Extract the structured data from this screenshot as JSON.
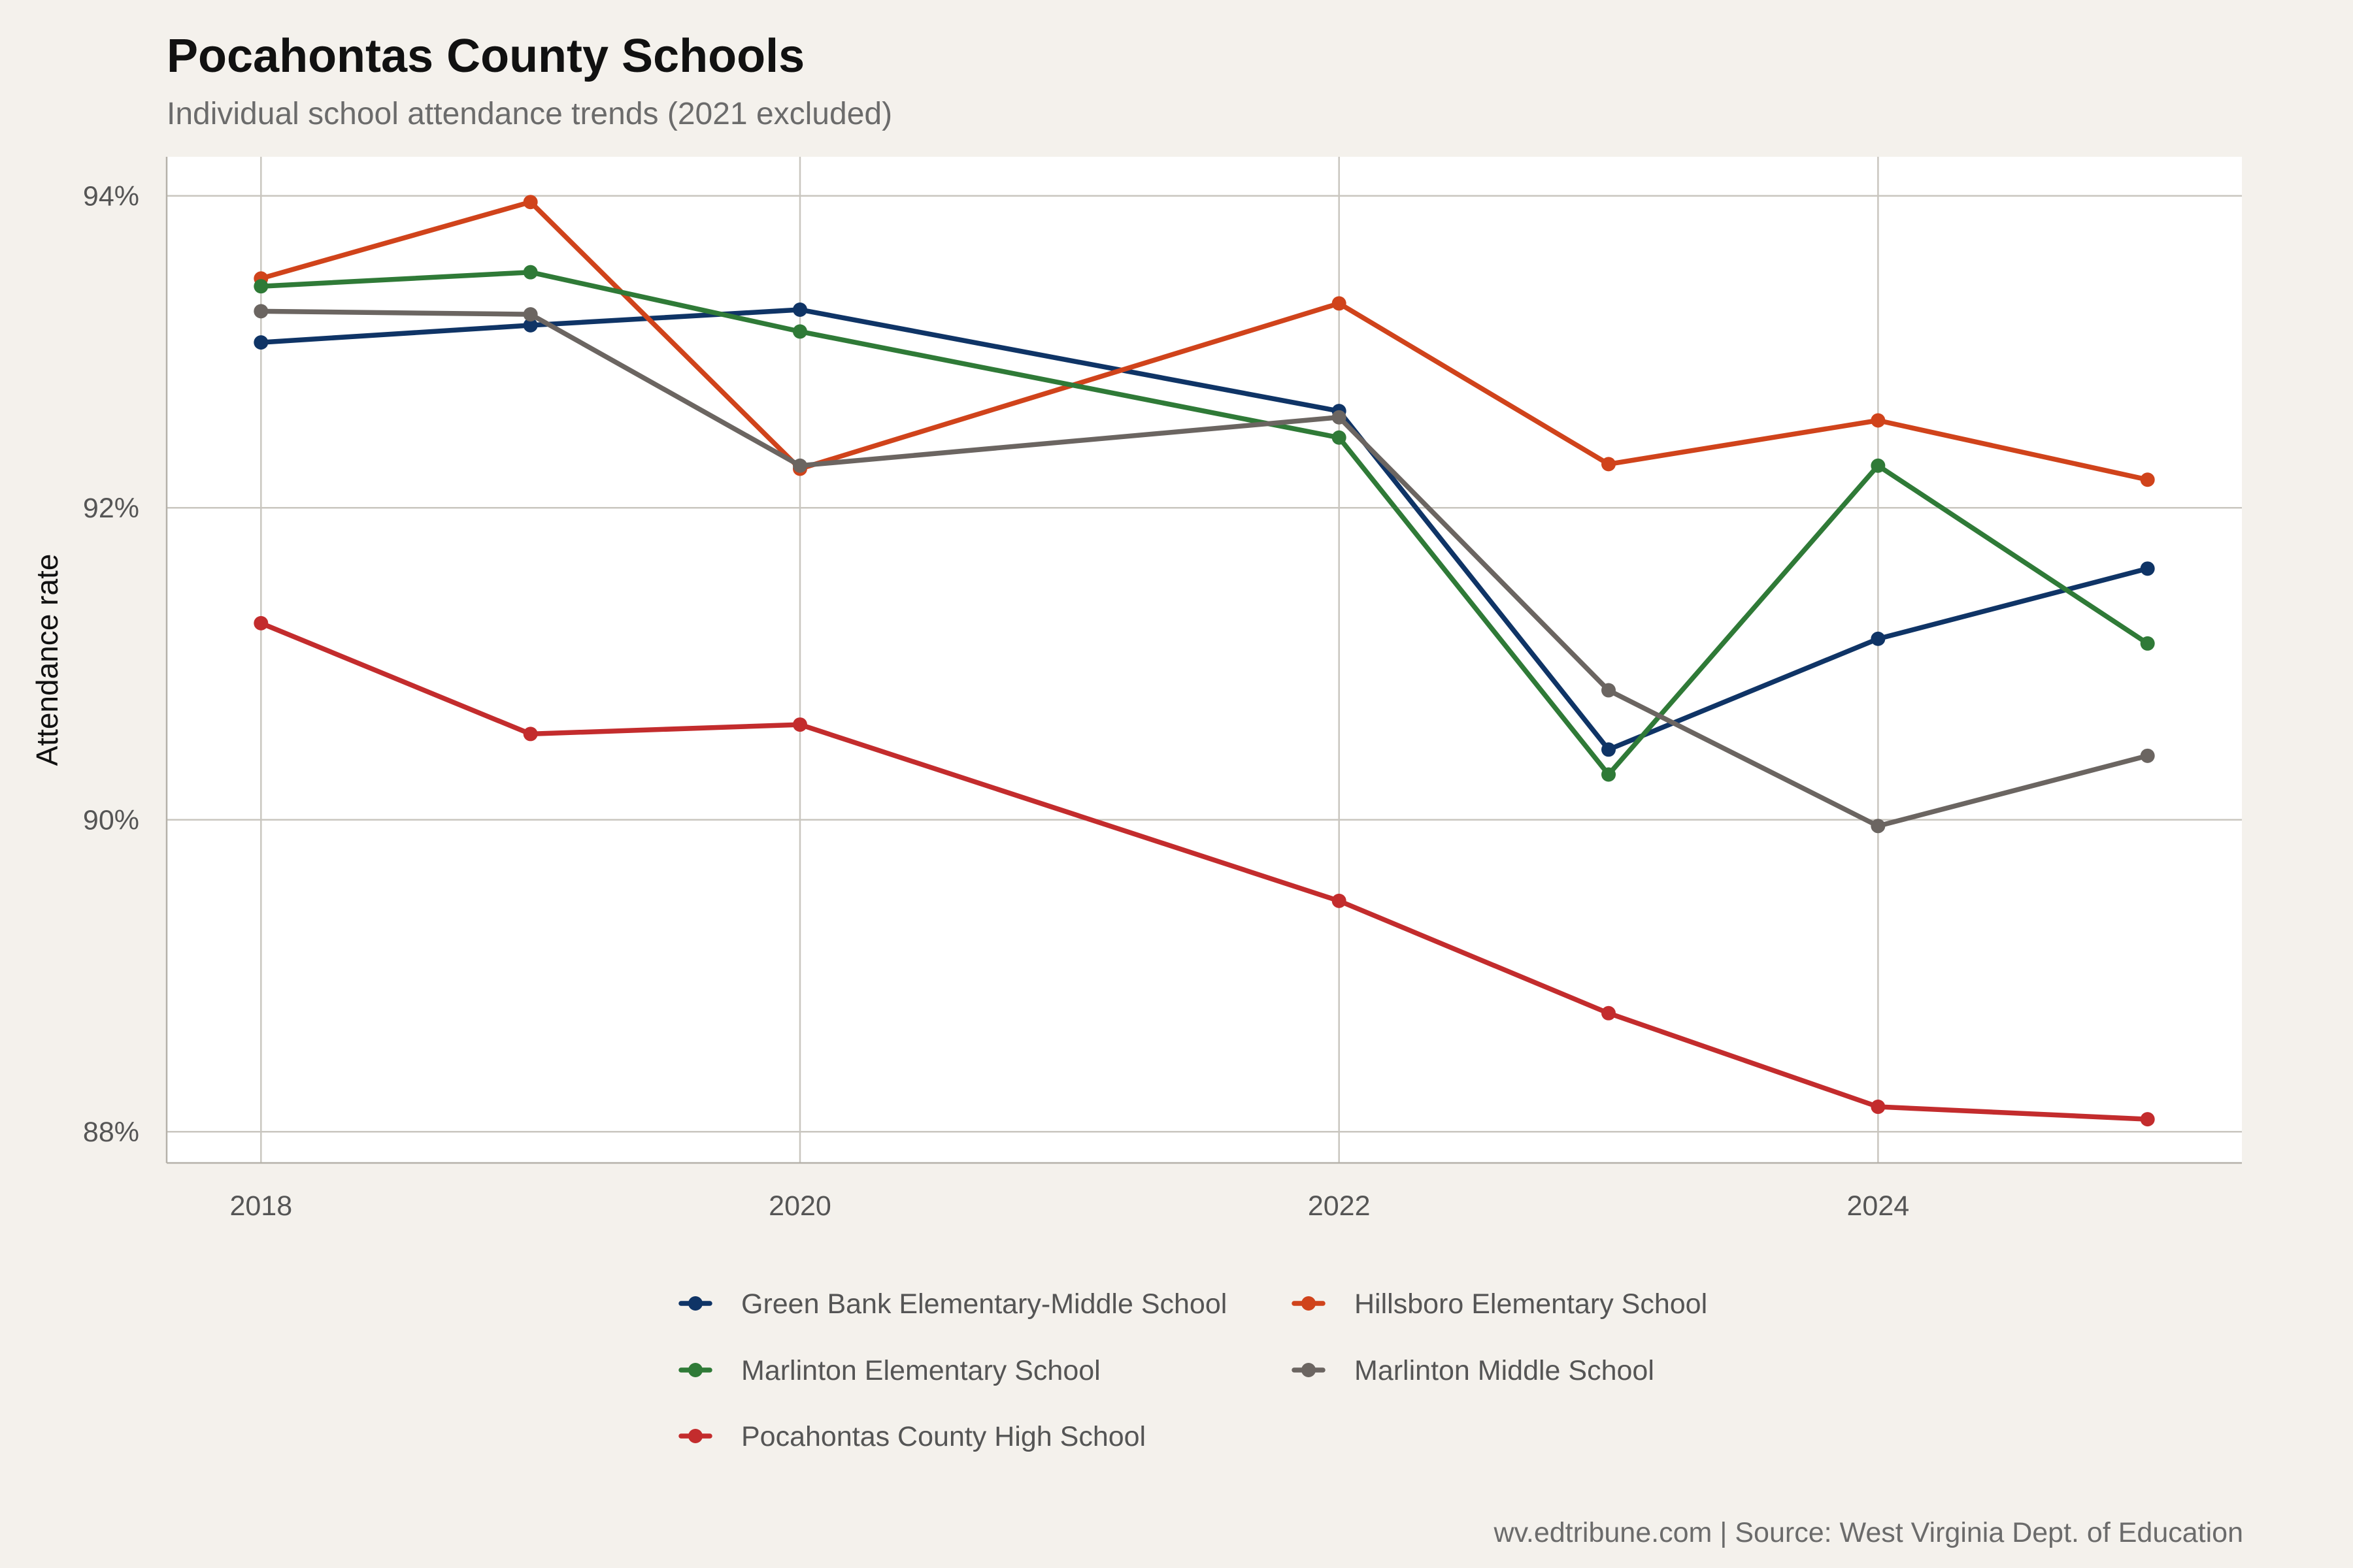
{
  "title": "Pocahontas County Schools",
  "subtitle": "Individual school attendance trends (2021 excluded)",
  "caption": "wv.edtribune.com | Source: West Virginia Dept. of Education",
  "chart_data": {
    "type": "line",
    "title": "Pocahontas County Schools",
    "subtitle": "Individual school attendance trends (2021 excluded)",
    "xlabel": "",
    "ylabel": "Attendance rate",
    "x": [
      2018,
      2019,
      2020,
      2022,
      2023,
      2024,
      2025
    ],
    "xlim": [
      2017.65,
      2025.35
    ],
    "ylim": [
      87.8,
      94.25
    ],
    "x_ticks": [
      2018,
      2020,
      2022,
      2024
    ],
    "x_tick_labels": [
      "2018",
      "2020",
      "2022",
      "2024"
    ],
    "y_ticks": [
      88,
      90,
      92,
      94
    ],
    "y_tick_labels": [
      "88%",
      "90%",
      "92%",
      "94%"
    ],
    "grid": true,
    "legend_position": "bottom",
    "series": [
      {
        "name": "Green Bank Elementary-Middle School",
        "color": "#0f3466",
        "values": [
          93.06,
          93.17,
          93.27,
          92.62,
          90.45,
          91.16,
          91.61
        ]
      },
      {
        "name": "Hillsboro Elementary School",
        "color": "#d0431b",
        "values": [
          93.47,
          93.96,
          92.25,
          93.31,
          92.28,
          92.56,
          92.18
        ]
      },
      {
        "name": "Marlinton Elementary School",
        "color": "#2f7a37",
        "values": [
          93.42,
          93.51,
          93.13,
          92.45,
          90.29,
          92.27,
          91.13
        ]
      },
      {
        "name": "Marlinton Middle School",
        "color": "#6b6561",
        "values": [
          93.26,
          93.24,
          92.27,
          92.58,
          90.83,
          89.96,
          90.41
        ]
      },
      {
        "name": "Pocahontas County High School",
        "color": "#c32c2d",
        "values": [
          91.26,
          90.55,
          90.61,
          89.48,
          88.76,
          88.16,
          88.08
        ]
      }
    ]
  }
}
